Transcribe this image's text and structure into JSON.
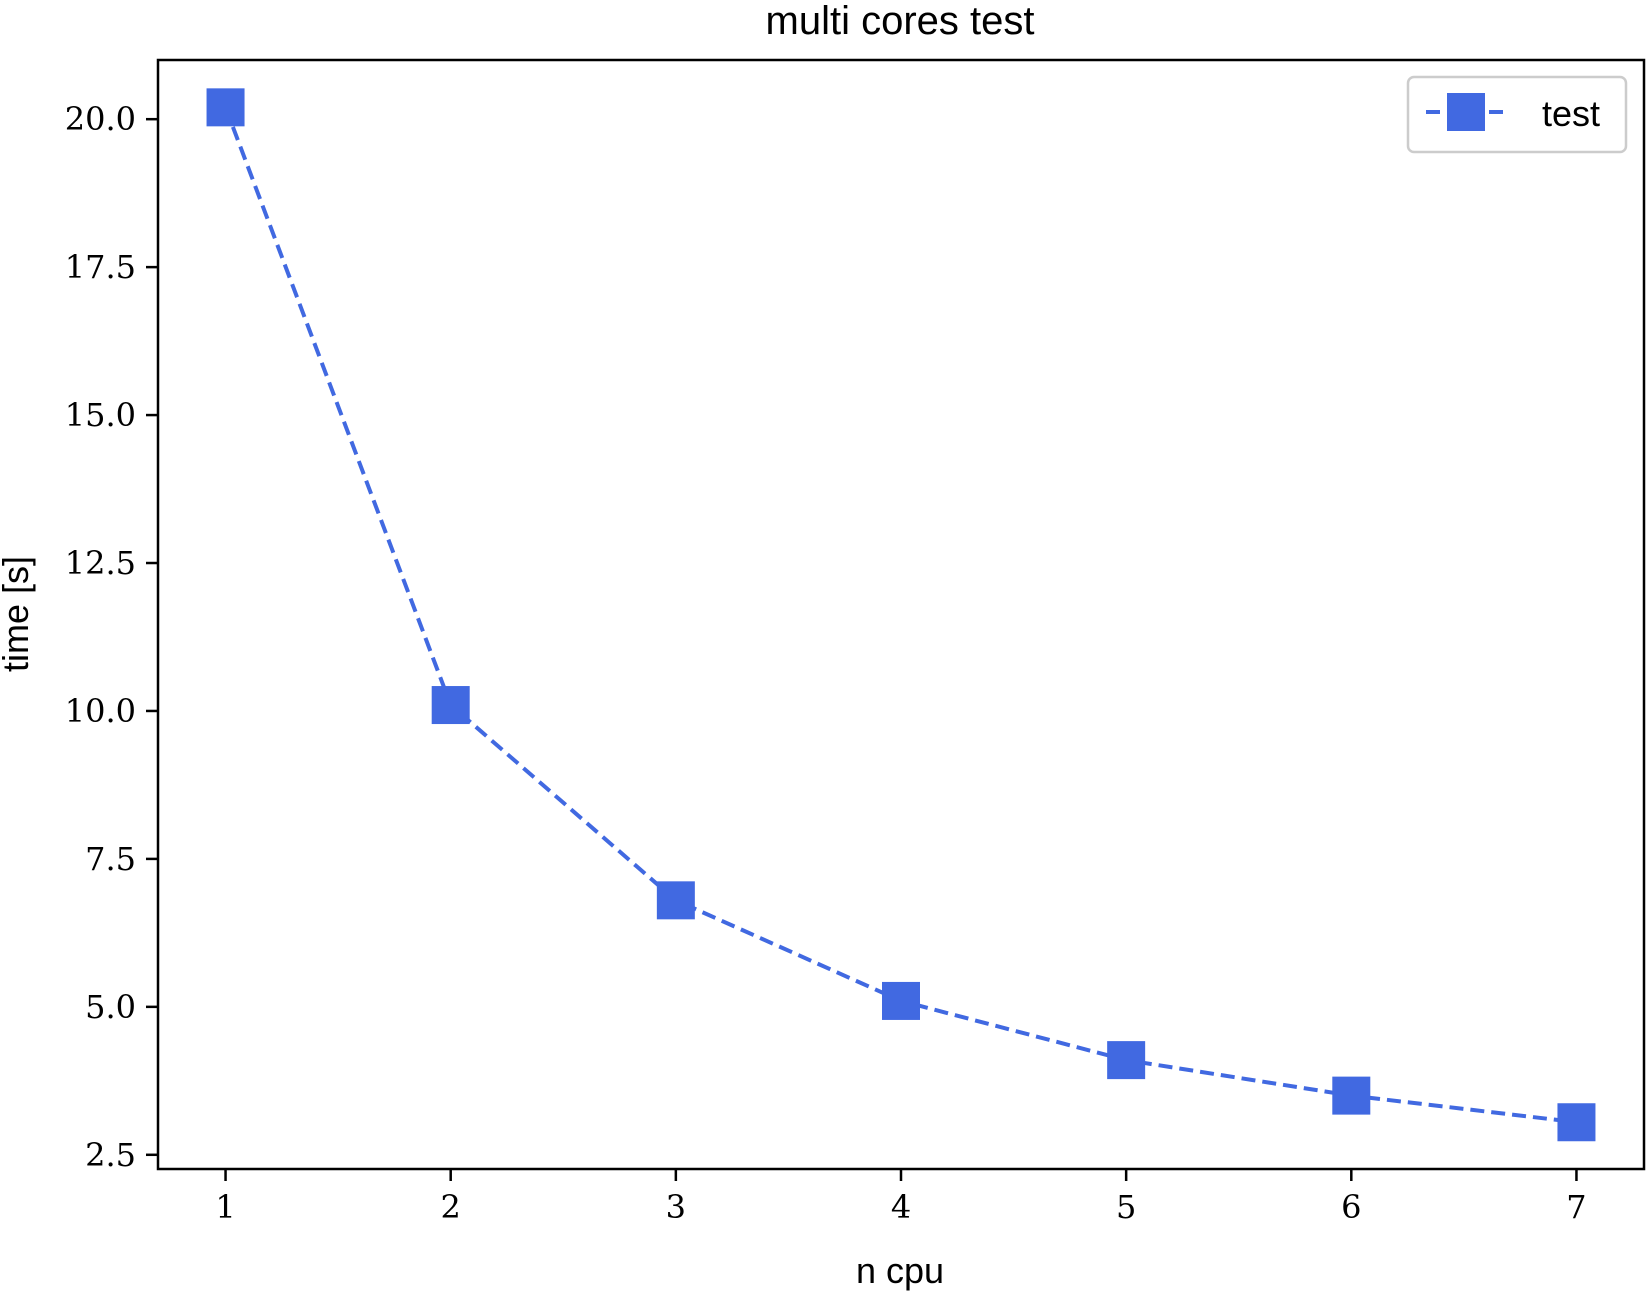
{
  "chart_data": {
    "type": "line",
    "title": "multi cores test",
    "xlabel": "n cpu",
    "ylabel": "time [s]",
    "x": [
      1,
      2,
      3,
      4,
      5,
      6,
      7
    ],
    "xticks": [
      "1",
      "2",
      "3",
      "4",
      "5",
      "6",
      "7"
    ],
    "yticks": [
      "2.5",
      "5.0",
      "7.5",
      "10.0",
      "12.5",
      "15.0",
      "17.5",
      "20.0"
    ],
    "ytick_values": [
      2.5,
      5.0,
      7.5,
      10.0,
      12.5,
      15.0,
      17.5,
      20.0
    ],
    "xlim": [
      0.7,
      7.3
    ],
    "ylim": [
      2.26,
      21.0
    ],
    "series": [
      {
        "name": "test",
        "values": [
          20.2,
          10.1,
          6.8,
          5.1,
          4.1,
          3.5,
          3.05
        ],
        "color": "#4169e1",
        "line_style": "dashed",
        "marker": "square"
      }
    ],
    "legend": "top-right",
    "grid": false
  }
}
